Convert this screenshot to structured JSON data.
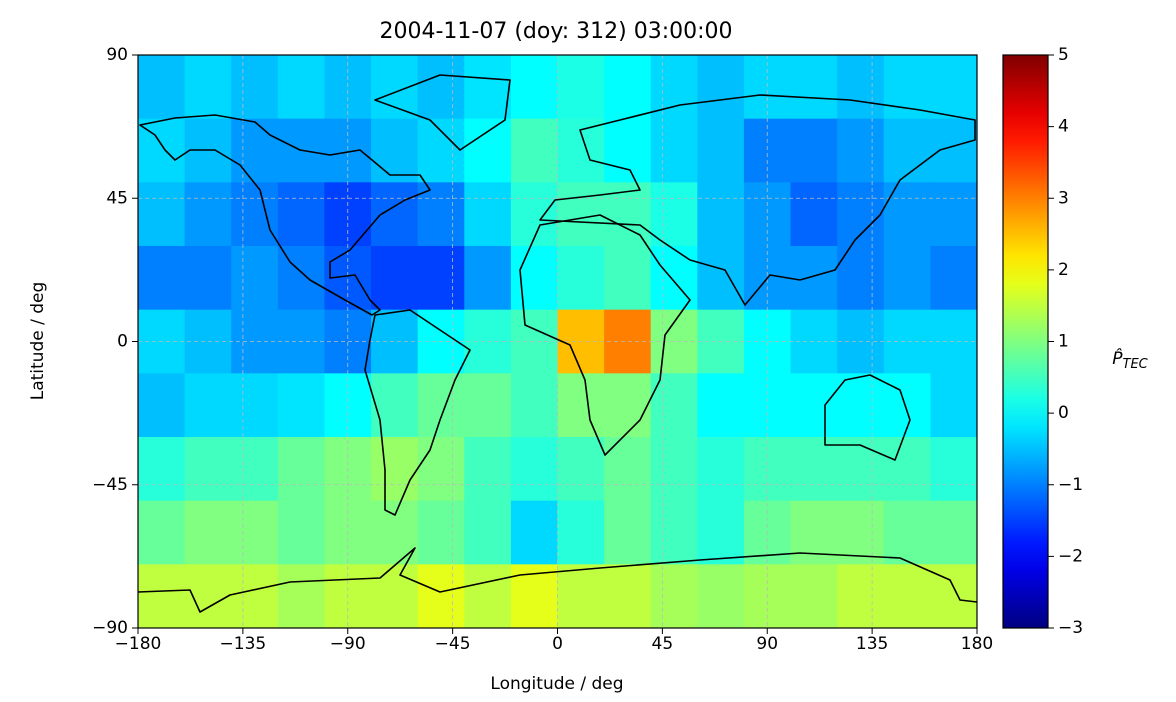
{
  "chart_data": {
    "type": "heatmap",
    "title": "2004-11-07 (doy: 312) 03:00:00",
    "x_label": "Longitude / deg",
    "y_label": "Latitude / deg",
    "colorbar_label": {
      "symbol": "P̂",
      "subscript": "TEC"
    },
    "colormap": "jet",
    "grid": true,
    "xlim": [
      -180,
      180
    ],
    "ylim": [
      -90,
      90
    ],
    "xticks": [
      {
        "value": -180,
        "label": "−180"
      },
      {
        "value": -135,
        "label": "−135"
      },
      {
        "value": -90,
        "label": "−90"
      },
      {
        "value": -45,
        "label": "−45"
      },
      0,
      45,
      90,
      135,
      180
    ],
    "yticks": [
      {
        "value": -90,
        "label": "−90"
      },
      {
        "value": -45,
        "label": "−45"
      },
      0,
      45,
      90
    ],
    "clim": [
      -3,
      5
    ],
    "cticks": [
      {
        "value": -3,
        "label": "−3"
      },
      {
        "value": -2,
        "label": "−2"
      },
      {
        "value": -1,
        "label": "−1"
      },
      0,
      1,
      2,
      3,
      4,
      5
    ],
    "xbins": [
      -180,
      -160,
      -140,
      -120,
      -100,
      -80,
      -60,
      -40,
      -20,
      0,
      20,
      40,
      60,
      80,
      100,
      120,
      140,
      160,
      180
    ],
    "ybins": [
      90,
      70,
      50,
      30,
      10,
      -10,
      -30,
      -50,
      -70,
      -90
    ],
    "values": [
      [
        -0.5,
        -0.3,
        -0.5,
        -0.3,
        -0.5,
        -0.3,
        -0.5,
        -0.2,
        0,
        0.2,
        0,
        -0.3,
        -0.5,
        -0.3,
        -0.3,
        -0.5,
        -0.3,
        -0.3
      ],
      [
        -0.3,
        -0.5,
        -0.8,
        -0.8,
        -0.8,
        -0.5,
        -0.3,
        0,
        0.5,
        0.3,
        0,
        -0.3,
        -0.5,
        -1,
        -1,
        -0.8,
        -0.5,
        -0.5
      ],
      [
        -0.5,
        -0.8,
        -1,
        -1.2,
        -1.5,
        -1.2,
        -1,
        -0.3,
        0.3,
        0.5,
        0.5,
        0.2,
        -0.5,
        -0.8,
        -1.2,
        -1,
        -0.8,
        -0.8
      ],
      [
        -1,
        -1,
        -0.8,
        -1,
        -1.3,
        -1.5,
        -1.5,
        -0.8,
        0,
        0.3,
        0.5,
        0,
        -0.5,
        -0.8,
        -0.8,
        -1,
        -0.8,
        -1
      ],
      [
        -0.3,
        -0.5,
        -0.8,
        -0.8,
        -1,
        -0.5,
        0,
        0.3,
        0.5,
        2.5,
        3,
        1,
        0.5,
        0,
        -0.3,
        -0.5,
        -0.3,
        -0.3
      ],
      [
        -0.5,
        -0.3,
        -0.3,
        -0.2,
        0,
        0.5,
        0.8,
        0.8,
        0.5,
        1,
        1,
        0.5,
        0,
        0,
        0,
        0,
        0,
        -0.3
      ],
      [
        0.3,
        0.5,
        0.5,
        0.8,
        1,
        1.2,
        1,
        0.5,
        0.3,
        0.5,
        0.8,
        0.5,
        0.3,
        0.5,
        0.5,
        0.5,
        0.5,
        0.3
      ],
      [
        0.8,
        1,
        1,
        0.8,
        1,
        1,
        0.8,
        0.5,
        -0.3,
        0.3,
        0.8,
        0.5,
        0.3,
        0.8,
        1,
        1,
        0.8,
        0.8
      ],
      [
        1.5,
        1.5,
        1.5,
        1.3,
        1.5,
        1.5,
        1.8,
        1.5,
        1.8,
        1.5,
        1.5,
        1.3,
        1.2,
        1.3,
        1.3,
        1.5,
        1.5,
        1.5
      ]
    ]
  }
}
